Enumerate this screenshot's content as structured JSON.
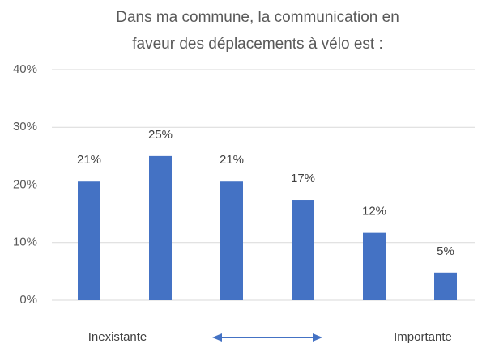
{
  "chart_data": {
    "type": "bar",
    "title": [
      "Dans ma commune, la communication en",
      "faveur des déplacements à vélo est :"
    ],
    "categories": [
      null,
      null,
      null,
      null,
      null,
      null
    ],
    "values": [
      20.6,
      25,
      20.6,
      17.4,
      11.7,
      4.8
    ],
    "value_labels": [
      "21%",
      "25%",
      "21%",
      "17%",
      "12%",
      "5%"
    ],
    "color": "#4472c4",
    "ylim": [
      0,
      40
    ],
    "yticks": [
      {
        "value": 0,
        "label": "0%"
      },
      {
        "value": 10,
        "label": "10%"
      },
      {
        "value": 20,
        "label": "20%"
      },
      {
        "value": 30,
        "label": "30%"
      },
      {
        "value": 40,
        "label": "40%"
      }
    ],
    "grid": true,
    "scale_labels": {
      "low": "Inexistante",
      "high": "Importante"
    }
  }
}
